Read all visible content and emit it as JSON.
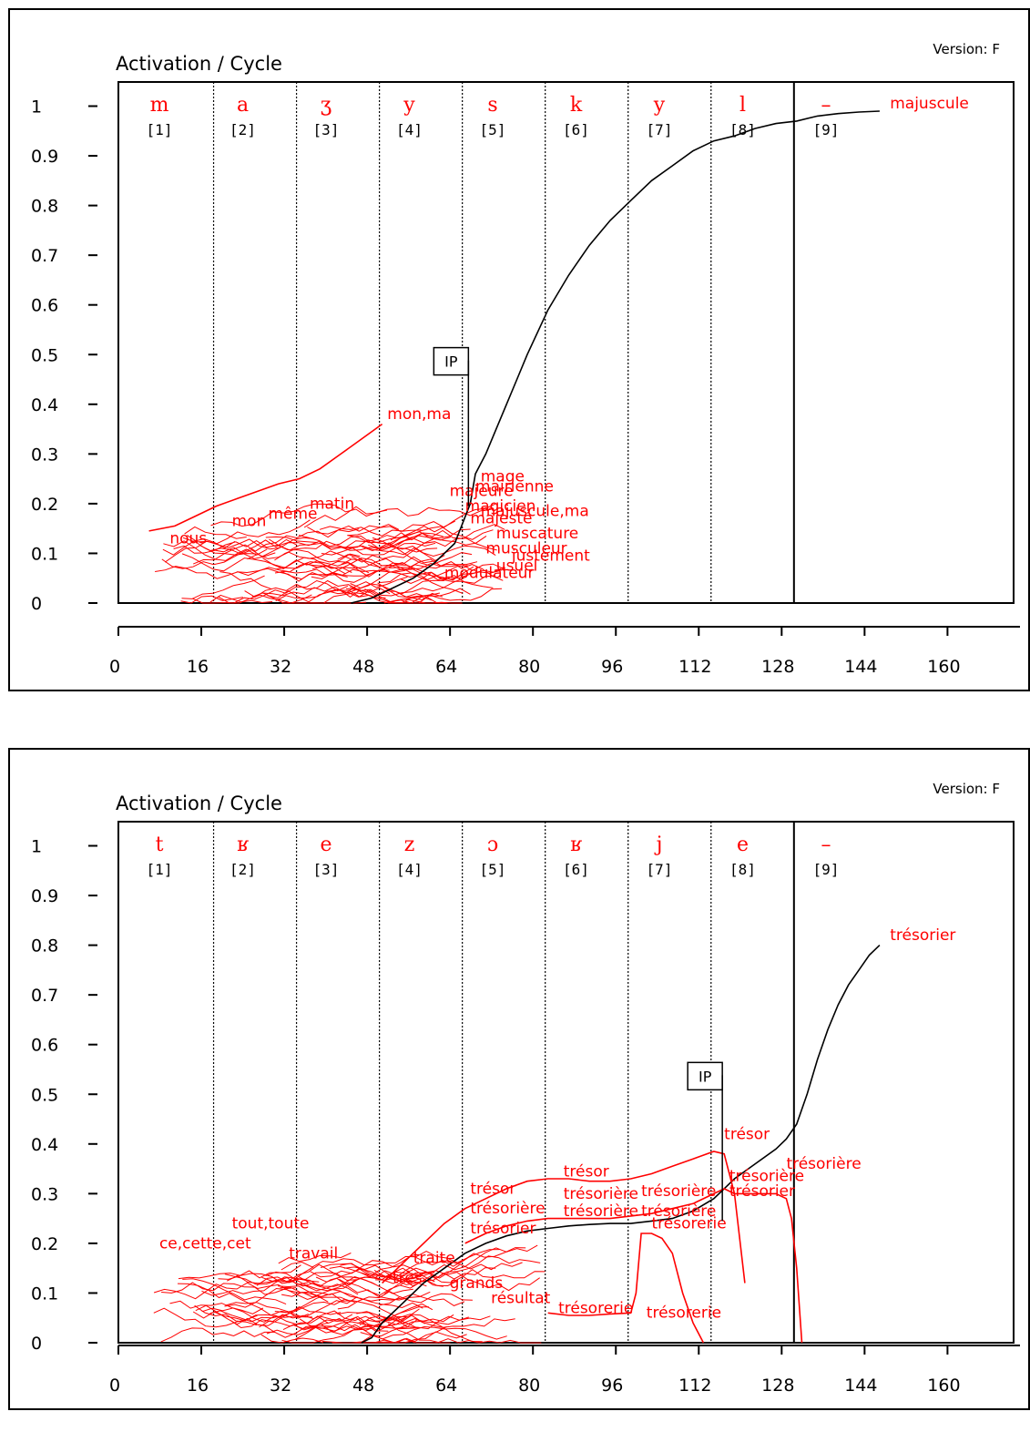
{
  "chart_data": [
    {
      "type": "line",
      "version": "Version: F",
      "title": "Activation / Cycle",
      "xticks": [
        "0",
        "16",
        "32",
        "48",
        "64",
        "80",
        "96",
        "112",
        "128",
        "144",
        "160"
      ],
      "yticks": [
        "0",
        "0.1",
        "0.2",
        "0.3",
        "0.4",
        "0.5",
        "0.6",
        "0.7",
        "0.8",
        "0.9",
        "1"
      ],
      "xlim": [
        0,
        168
      ],
      "ylim": [
        0,
        1
      ],
      "segment_boundaries": [
        16,
        32,
        48,
        64,
        80,
        96,
        112
      ],
      "end_boundary": 128,
      "phonemes": [
        "m",
        "a",
        "ʒ",
        "y",
        "s",
        "k",
        "y",
        "l",
        "–"
      ],
      "phoneme_indices": [
        "[1]",
        "[2]",
        "[3]",
        "[4]",
        "[5]",
        "[6]",
        "[7]",
        "[8]",
        "[9]"
      ],
      "ip_label": "IP",
      "ip_cycle": 65,
      "ip_value": 0.47,
      "series": [
        {
          "name": "majuscule",
          "color": "#000000",
          "x": [
            42,
            46,
            50,
            54,
            58,
            62,
            65,
            66,
            68,
            70,
            72,
            74,
            76,
            80,
            84,
            88,
            92,
            96,
            100,
            104,
            108,
            112,
            116,
            120,
            124,
            128,
            132,
            136,
            140,
            144
          ],
          "y": [
            0,
            0.01,
            0.03,
            0.05,
            0.08,
            0.12,
            0.2,
            0.26,
            0.3,
            0.35,
            0.4,
            0.45,
            0.5,
            0.59,
            0.66,
            0.72,
            0.77,
            0.81,
            0.85,
            0.88,
            0.91,
            0.93,
            0.94,
            0.955,
            0.965,
            0.97,
            0.98,
            0.985,
            0.988,
            0.99
          ]
        },
        {
          "name": "mon,ma",
          "color": "#ff0000",
          "x": [
            3,
            8,
            12,
            16,
            20,
            24,
            28,
            32,
            36,
            40,
            44,
            48
          ],
          "y": [
            0.145,
            0.155,
            0.175,
            0.195,
            0.21,
            0.225,
            0.24,
            0.25,
            0.27,
            0.3,
            0.33,
            0.36
          ]
        }
      ],
      "labels": [
        {
          "text": "majuscule",
          "x": 146,
          "y": 0.995
        },
        {
          "text": "mon,ma",
          "x": 49,
          "y": 0.37
        },
        {
          "text": "nous",
          "x": 7,
          "y": 0.12
        },
        {
          "text": "mon",
          "x": 19,
          "y": 0.155
        },
        {
          "text": "même",
          "x": 26,
          "y": 0.17
        },
        {
          "text": "matin",
          "x": 34,
          "y": 0.19
        },
        {
          "text": "mage",
          "x": 67,
          "y": 0.245
        },
        {
          "text": "majeure",
          "x": 61,
          "y": 0.215
        },
        {
          "text": "mairienne",
          "x": 66,
          "y": 0.225
        },
        {
          "text": "magicien",
          "x": 64,
          "y": 0.185
        },
        {
          "text": "majesté",
          "x": 65,
          "y": 0.16
        },
        {
          "text": "muscature",
          "x": 70,
          "y": 0.13
        },
        {
          "text": "majuscule,ma",
          "x": 67,
          "y": 0.175
        },
        {
          "text": "musculeur",
          "x": 68,
          "y": 0.1
        },
        {
          "text": "justement",
          "x": 73,
          "y": 0.085
        },
        {
          "text": "usuel",
          "x": 70,
          "y": 0.065
        },
        {
          "text": "modulateur",
          "x": 60,
          "y": 0.05
        }
      ]
    },
    {
      "type": "line",
      "version": "Version: F",
      "title": "Activation / Cycle",
      "xticks": [
        "0",
        "16",
        "32",
        "48",
        "64",
        "80",
        "96",
        "112",
        "128",
        "144",
        "160"
      ],
      "yticks": [
        "0",
        "0.1",
        "0.2",
        "0.3",
        "0.4",
        "0.5",
        "0.6",
        "0.7",
        "0.8",
        "0.9",
        "1"
      ],
      "xlim": [
        0,
        168
      ],
      "ylim": [
        0,
        1
      ],
      "segment_boundaries": [
        16,
        32,
        48,
        64,
        80,
        96,
        112
      ],
      "end_boundary": 128,
      "phonemes": [
        "t",
        "ʁ",
        "e",
        "z",
        "ɔ",
        "ʁ",
        "j",
        "e",
        "–"
      ],
      "phoneme_indices": [
        "[1]",
        "[2]",
        "[3]",
        "[4]",
        "[5]",
        "[6]",
        "[7]",
        "[8]",
        "[9]"
      ],
      "ip_label": "IP",
      "ip_cycle": 114,
      "ip_value": 0.52,
      "series": [
        {
          "name": "trésorier",
          "color": "#000000",
          "x": [
            44,
            46,
            48,
            52,
            56,
            60,
            64,
            68,
            72,
            76,
            80,
            84,
            88,
            92,
            96,
            100,
            104,
            108,
            112,
            114,
            116,
            120,
            124,
            126,
            128,
            130,
            132,
            134,
            136,
            138,
            140,
            142,
            144
          ],
          "y": [
            0,
            0.01,
            0.04,
            0.08,
            0.12,
            0.15,
            0.18,
            0.2,
            0.215,
            0.225,
            0.23,
            0.235,
            0.238,
            0.24,
            0.24,
            0.245,
            0.25,
            0.265,
            0.29,
            0.31,
            0.33,
            0.36,
            0.39,
            0.41,
            0.44,
            0.5,
            0.57,
            0.63,
            0.68,
            0.72,
            0.75,
            0.78,
            0.8
          ]
        },
        {
          "name": "trésor",
          "color": "#ff0000",
          "x": [
            48,
            52,
            56,
            60,
            64,
            68,
            72,
            76,
            80,
            84,
            88,
            92,
            96,
            100,
            104,
            108,
            112,
            114,
            116,
            118
          ],
          "y": [
            0.12,
            0.16,
            0.2,
            0.24,
            0.27,
            0.29,
            0.31,
            0.325,
            0.33,
            0.33,
            0.325,
            0.325,
            0.33,
            0.34,
            0.355,
            0.37,
            0.385,
            0.38,
            0.3,
            0.12
          ]
        },
        {
          "name": "trésorière",
          "color": "#ff0000",
          "x": [
            64,
            68,
            72,
            76,
            80,
            84,
            88,
            92,
            96,
            100,
            104,
            108,
            112,
            114,
            116,
            120,
            124,
            126,
            127,
            128,
            129
          ],
          "y": [
            0.2,
            0.22,
            0.235,
            0.245,
            0.25,
            0.25,
            0.25,
            0.25,
            0.255,
            0.26,
            0.27,
            0.28,
            0.3,
            0.31,
            0.3,
            0.3,
            0.3,
            0.29,
            0.25,
            0.15,
            0
          ]
        },
        {
          "name": "trésorerie",
          "color": "#ff0000",
          "x": [
            80,
            84,
            88,
            92,
            96,
            97,
            98,
            100,
            102,
            104,
            106,
            108,
            110
          ],
          "y": [
            0.06,
            0.055,
            0.055,
            0.058,
            0.06,
            0.1,
            0.22,
            0.22,
            0.21,
            0.18,
            0.1,
            0.04,
            0
          ]
        }
      ],
      "labels": [
        {
          "text": "trésorier",
          "x": 146,
          "y": 0.81
        },
        {
          "text": "tout,toute",
          "x": 19,
          "y": 0.23
        },
        {
          "text": "ce,cette,cet",
          "x": 5,
          "y": 0.19
        },
        {
          "text": "travail",
          "x": 30,
          "y": 0.17
        },
        {
          "text": "traite",
          "x": 54,
          "y": 0.16
        },
        {
          "text": "très",
          "x": 50,
          "y": 0.12
        },
        {
          "text": "grands",
          "x": 61,
          "y": 0.11
        },
        {
          "text": "résultat",
          "x": 69,
          "y": 0.08
        },
        {
          "text": "trésor",
          "x": 65,
          "y": 0.3
        },
        {
          "text": "trésorière",
          "x": 65,
          "y": 0.26
        },
        {
          "text": "trésorier",
          "x": 65,
          "y": 0.22
        },
        {
          "text": "trésor",
          "x": 83,
          "y": 0.335
        },
        {
          "text": "trésorière",
          "x": 83,
          "y": 0.29
        },
        {
          "text": "trésorière",
          "x": 83,
          "y": 0.255
        },
        {
          "text": "trésorière",
          "x": 98,
          "y": 0.295
        },
        {
          "text": "trésorière",
          "x": 98,
          "y": 0.255
        },
        {
          "text": "trésorerie",
          "x": 100,
          "y": 0.23
        },
        {
          "text": "trésor",
          "x": 114,
          "y": 0.41
        },
        {
          "text": "trésorière",
          "x": 115,
          "y": 0.325
        },
        {
          "text": "trésorier",
          "x": 115,
          "y": 0.295
        },
        {
          "text": "trésorière",
          "x": 126,
          "y": 0.35
        },
        {
          "text": "trésorerie",
          "x": 82,
          "y": 0.06
        },
        {
          "text": "trésorerie",
          "x": 99,
          "y": 0.05
        }
      ]
    }
  ]
}
